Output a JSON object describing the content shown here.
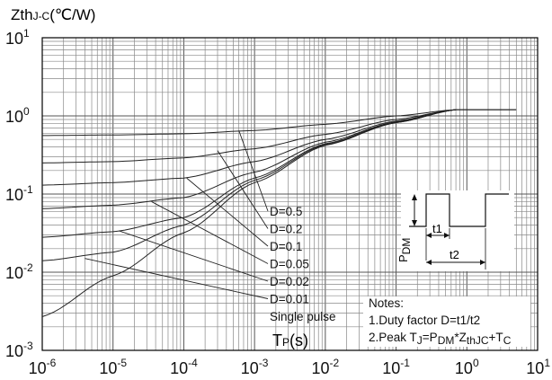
{
  "chart_data": {
    "type": "line",
    "title": "",
    "ylabel": {
      "main": "Zth",
      "sub": "J-C",
      "unit": "(℃/W)"
    },
    "xlabel": {
      "main": "T",
      "sub": "P",
      "unit": "(s)"
    },
    "x_scale": "log",
    "y_scale": "log",
    "xlim": [
      1e-06,
      10
    ],
    "ylim": [
      0.001,
      10
    ],
    "grid": true,
    "x_ticks": [
      {
        "base": "10",
        "exp": "-6",
        "value": 1e-06
      },
      {
        "base": "10",
        "exp": "-5",
        "value": 1e-05
      },
      {
        "base": "10",
        "exp": "-4",
        "value": 0.0001
      },
      {
        "base": "10",
        "exp": "-3",
        "value": 0.001
      },
      {
        "base": "10",
        "exp": "-2",
        "value": 0.01
      },
      {
        "base": "10",
        "exp": "-1",
        "value": 0.1
      },
      {
        "base": "10",
        "exp": "0",
        "value": 1
      },
      {
        "base": "10",
        "exp": "1",
        "value": 10
      }
    ],
    "y_ticks": [
      {
        "base": "10",
        "exp": "1",
        "value": 10
      },
      {
        "base": "10",
        "exp": "0",
        "value": 1
      },
      {
        "base": "10",
        "exp": "-1",
        "value": 0.1
      },
      {
        "base": "10",
        "exp": "-2",
        "value": 0.01
      },
      {
        "base": "10",
        "exp": "-3",
        "value": 0.001
      }
    ],
    "series": [
      {
        "name": "D=0.5",
        "x": [
          1e-06,
          1e-05,
          0.0001,
          0.001,
          0.01,
          0.1,
          0.7
        ],
        "y": [
          0.56,
          0.57,
          0.59,
          0.65,
          0.78,
          1.0,
          1.2
        ]
      },
      {
        "name": "D=0.2",
        "x": [
          1e-06,
          1e-05,
          0.0001,
          0.001,
          0.01,
          0.1,
          0.7
        ],
        "y": [
          0.25,
          0.26,
          0.29,
          0.38,
          0.58,
          0.9,
          1.2
        ]
      },
      {
        "name": "D=0.1",
        "x": [
          1e-06,
          1e-05,
          0.0001,
          0.001,
          0.01,
          0.1,
          0.7
        ],
        "y": [
          0.13,
          0.14,
          0.16,
          0.26,
          0.5,
          0.86,
          1.2
        ]
      },
      {
        "name": "D=0.05",
        "x": [
          1e-06,
          1e-05,
          0.0001,
          0.001,
          0.01,
          0.1,
          0.7
        ],
        "y": [
          0.065,
          0.072,
          0.09,
          0.19,
          0.46,
          0.84,
          1.2
        ]
      },
      {
        "name": "D=0.02",
        "x": [
          1e-06,
          1e-05,
          0.0001,
          0.001,
          0.01,
          0.1,
          0.7
        ],
        "y": [
          0.028,
          0.033,
          0.05,
          0.16,
          0.44,
          0.83,
          1.2
        ]
      },
      {
        "name": "D=0.01",
        "x": [
          1e-06,
          1e-05,
          0.0001,
          0.001,
          0.01,
          0.1,
          0.7
        ],
        "y": [
          0.014,
          0.018,
          0.04,
          0.15,
          0.43,
          0.82,
          1.2
        ]
      },
      {
        "name": "Single pulse",
        "x": [
          1e-06,
          1e-05,
          0.0001,
          0.001,
          0.01,
          0.1,
          0.7
        ],
        "y": [
          0.0027,
          0.009,
          0.032,
          0.14,
          0.42,
          0.82,
          1.2
        ]
      }
    ],
    "final_value": {
      "x": [
        0.7,
        5
      ],
      "y": 1.2
    },
    "label_leaders": [
      {
        "name": "D=0.5",
        "from_x": 0.0006,
        "from_y": 0.65
      },
      {
        "name": "D=0.2",
        "from_x": 0.0003,
        "from_y": 0.36
      },
      {
        "name": "D=0.1",
        "from_x": 0.00011,
        "from_y": 0.16
      },
      {
        "name": "D=0.05",
        "from_x": 3.5e-05,
        "from_y": 0.08
      },
      {
        "name": "D=0.02",
        "from_x": 1.2e-05,
        "from_y": 0.034
      },
      {
        "name": "D=0.01",
        "from_x": 4e-06,
        "from_y": 0.015
      }
    ],
    "notes": {
      "title": "Notes:",
      "line1": "1.Duty factor D=t1/t2",
      "line2": {
        "a": "2.Peak T",
        "b": "J",
        "c": "=P",
        "d": "DM",
        "e": "*Z",
        "f": "thJC",
        "g": "+T",
        "h": "C"
      }
    },
    "inset": {
      "pdm": {
        "main": "P",
        "sub": "DM"
      },
      "t1": "t1",
      "t2": "t2"
    }
  }
}
